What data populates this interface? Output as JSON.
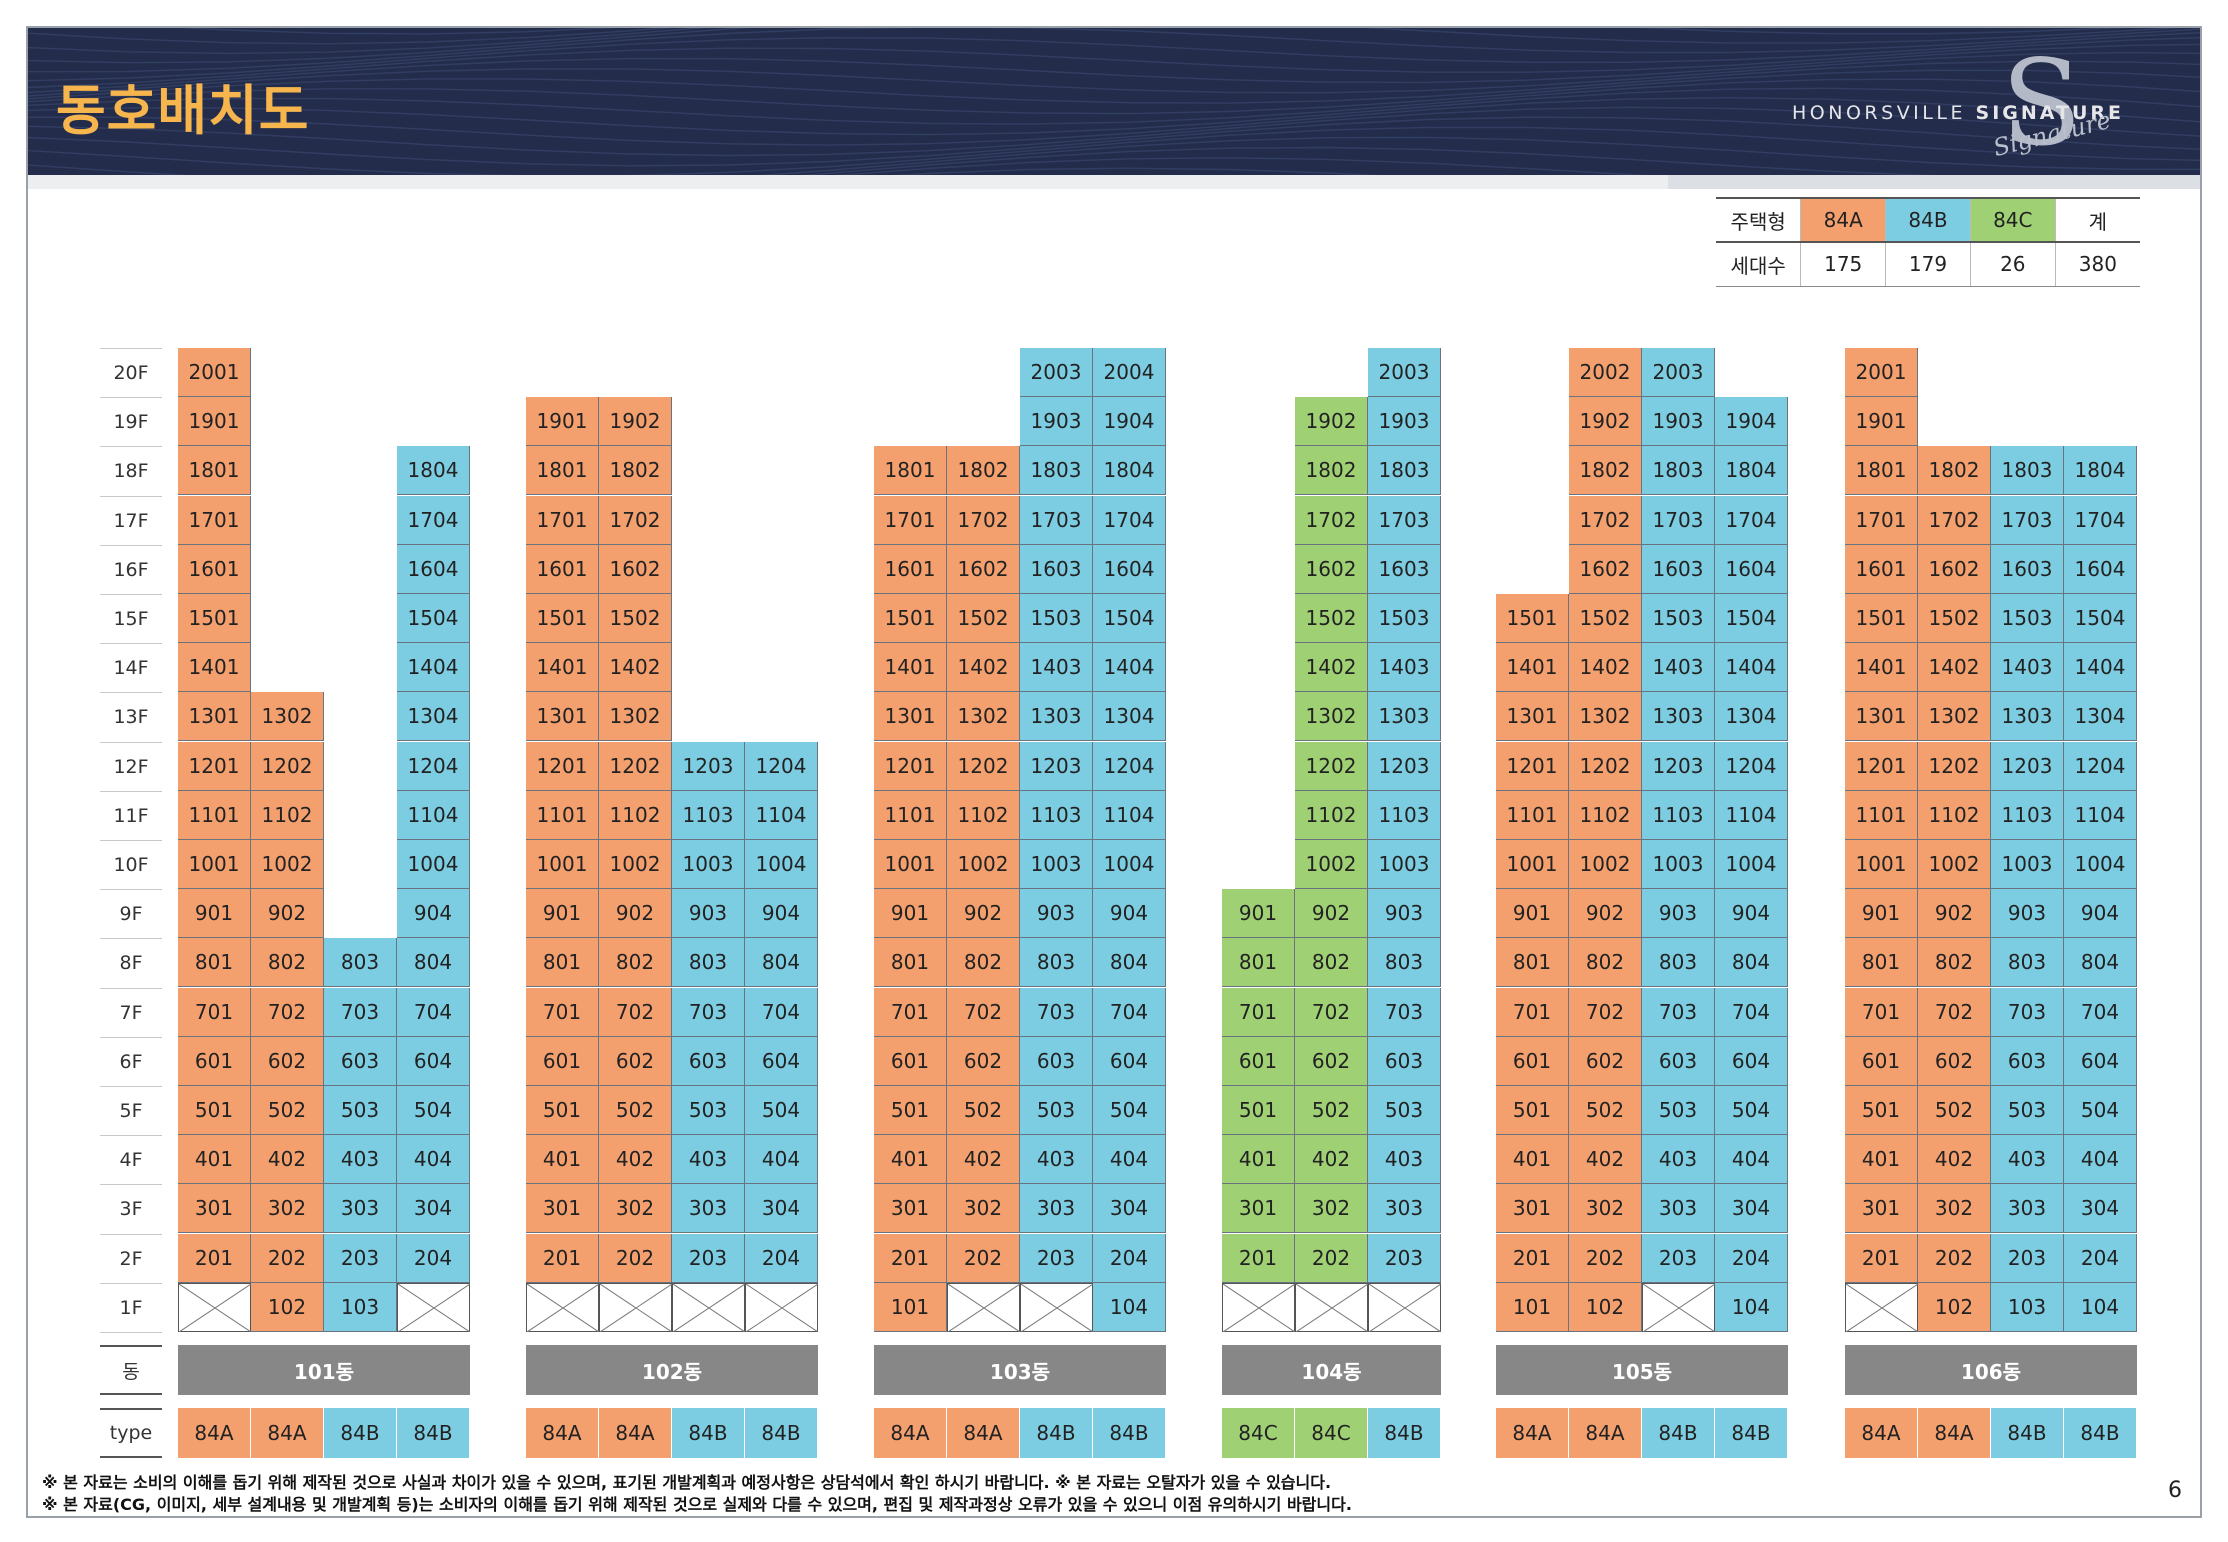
{
  "header": {
    "title": "동호배치도",
    "brand_left": "HONORSVILLE ",
    "brand_bold": "SIGNATURE",
    "brand_script": "Signature",
    "brand_mark": "S"
  },
  "unit_table": {
    "row1_label": "주택형",
    "row2_label": "세대수",
    "types": [
      {
        "name": "84A",
        "count": "175",
        "color": "#f4a06e"
      },
      {
        "name": "84B",
        "count": "179",
        "color": "#7dcde2"
      },
      {
        "name": "84C",
        "count": "26",
        "color": "#9fd174"
      }
    ],
    "total_label": "계",
    "total": "380"
  },
  "floors": [
    "20F",
    "19F",
    "18F",
    "17F",
    "16F",
    "15F",
    "14F",
    "13F",
    "12F",
    "11F",
    "10F",
    "9F",
    "8F",
    "7F",
    "6F",
    "5F",
    "4F",
    "3F",
    "2F",
    "1F"
  ],
  "dong_row_label": "동",
  "type_row_label": "type",
  "buildings": [
    {
      "name": "101동",
      "types": [
        "84A",
        "84A",
        "84B",
        "84B"
      ],
      "top": [
        20,
        13,
        8,
        18
      ],
      "first_floor": [
        "x",
        "102",
        "103",
        "x"
      ]
    },
    {
      "name": "102동",
      "types": [
        "84A",
        "84A",
        "84B",
        "84B"
      ],
      "top": [
        19,
        19,
        12,
        12
      ],
      "first_floor": [
        "x",
        "x",
        "x",
        "x"
      ]
    },
    {
      "name": "103동",
      "types": [
        "84A",
        "84A",
        "84B",
        "84B"
      ],
      "top": [
        18,
        18,
        20,
        20
      ],
      "first_floor": [
        "101",
        "x",
        "x",
        "104"
      ]
    },
    {
      "name": "104동",
      "types": [
        "84C",
        "84C",
        "84B"
      ],
      "top": [
        9,
        19,
        20
      ],
      "first_floor": [
        "x",
        "x",
        "x"
      ]
    },
    {
      "name": "105동",
      "types": [
        "84A",
        "84A",
        "84B",
        "84B"
      ],
      "top": [
        15,
        20,
        20,
        19
      ],
      "first_floor": [
        "101",
        "102",
        "x",
        "104"
      ],
      "col_numbers": [
        1,
        2,
        3,
        4
      ]
    },
    {
      "name": "106동",
      "types": [
        "84A",
        "84A",
        "84B",
        "84B"
      ],
      "top": [
        20,
        18,
        18,
        18
      ],
      "first_floor": [
        "x",
        "102",
        "103",
        "104"
      ]
    }
  ],
  "notes": [
    "※ 본 자료는 소비의 이해를 돕기 위해 제작된 것으로 사실과 차이가 있을 수 있으며, 표기된 개발계획과 예정사항은 상담석에서 확인 하시기 바랍니다.   ※ 본 자료는 오탈자가 있을 수 있습니다.",
    "※ 본 자료(CG, 이미지, 세부 설계내용 및 개발계획 등)는 소비자의 이해를 돕기 위해 제작된 것으로 실제와 다를 수 있으며, 편집 및 제작과정상 오류가 있을 수 있으니 이점 유의하시기 바랍니다."
  ],
  "page_number": "6",
  "colors": {
    "84A": "#f4a06e",
    "84B": "#7dcde2",
    "84C": "#9fd174",
    "header_bg": "#232d4b",
    "title": "#f6b64d",
    "dong_bg": "#878787"
  }
}
